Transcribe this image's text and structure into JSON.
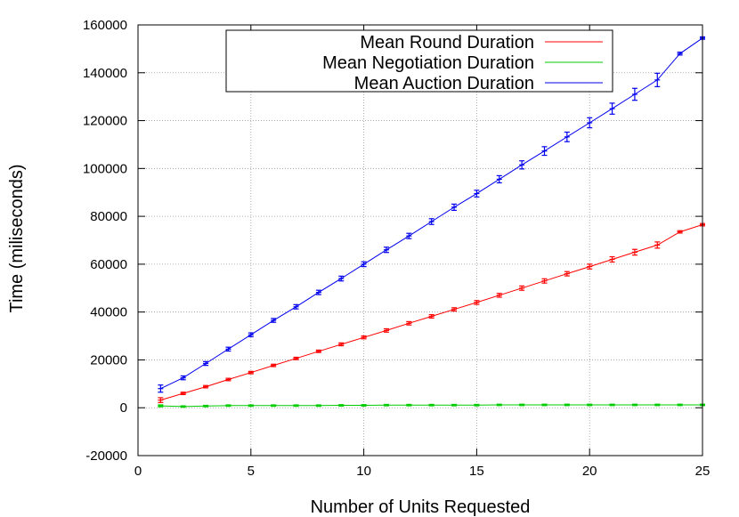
{
  "chart_data": {
    "type": "line",
    "title": "",
    "xlabel": "Number of Units Requested",
    "ylabel": "Time (miliseconds)",
    "xlim": [
      0,
      25
    ],
    "ylim": [
      -20000,
      160000
    ],
    "xticks": [
      0,
      5,
      10,
      15,
      20,
      25
    ],
    "yticks": [
      -20000,
      0,
      20000,
      40000,
      60000,
      80000,
      100000,
      120000,
      140000,
      160000
    ],
    "grid": true,
    "legend": "top-center",
    "x": [
      1,
      2,
      3,
      4,
      5,
      6,
      7,
      8,
      9,
      10,
      11,
      12,
      13,
      14,
      15,
      16,
      17,
      18,
      19,
      20,
      21,
      22,
      23,
      24,
      25
    ],
    "series": [
      {
        "name": "Mean Round Duration",
        "color": "#ff0000",
        "values": [
          3200,
          6000,
          8800,
          11800,
          14700,
          17700,
          20600,
          23600,
          26500,
          29400,
          32300,
          35300,
          38200,
          41100,
          44000,
          47000,
          50000,
          53000,
          56000,
          59000,
          62000,
          65000,
          68000,
          73500,
          76500
        ],
        "errors": [
          1000,
          500,
          500,
          500,
          500,
          500,
          500,
          500,
          600,
          600,
          700,
          700,
          700,
          700,
          800,
          800,
          900,
          900,
          900,
          1000,
          1100,
          1200,
          1300,
          500,
          500
        ]
      },
      {
        "name": "Mean Negotiation Duration",
        "color": "#00cc00",
        "values": [
          800,
          500,
          700,
          900,
          900,
          900,
          900,
          900,
          1000,
          1000,
          1100,
          1100,
          1100,
          1100,
          1100,
          1200,
          1200,
          1200,
          1200,
          1200,
          1200,
          1200,
          1200,
          1200,
          1200
        ],
        "errors": [
          400,
          300,
          300,
          300,
          300,
          300,
          300,
          300,
          300,
          300,
          300,
          300,
          300,
          300,
          300,
          300,
          300,
          300,
          300,
          300,
          300,
          300,
          300,
          300,
          300
        ]
      },
      {
        "name": "Mean Auction Duration",
        "color": "#0000ee",
        "values": [
          8000,
          12500,
          18500,
          24500,
          30500,
          36500,
          42200,
          48200,
          54000,
          60000,
          66000,
          71800,
          77800,
          83800,
          89500,
          95500,
          101500,
          107300,
          113200,
          119100,
          125000,
          131000,
          137000,
          148000,
          154500
        ],
        "errors": [
          1500,
          800,
          800,
          800,
          800,
          800,
          900,
          900,
          1000,
          1000,
          1100,
          1100,
          1200,
          1300,
          1400,
          1500,
          1700,
          1800,
          2000,
          2100,
          2300,
          2500,
          2800,
          600,
          500
        ]
      }
    ]
  }
}
